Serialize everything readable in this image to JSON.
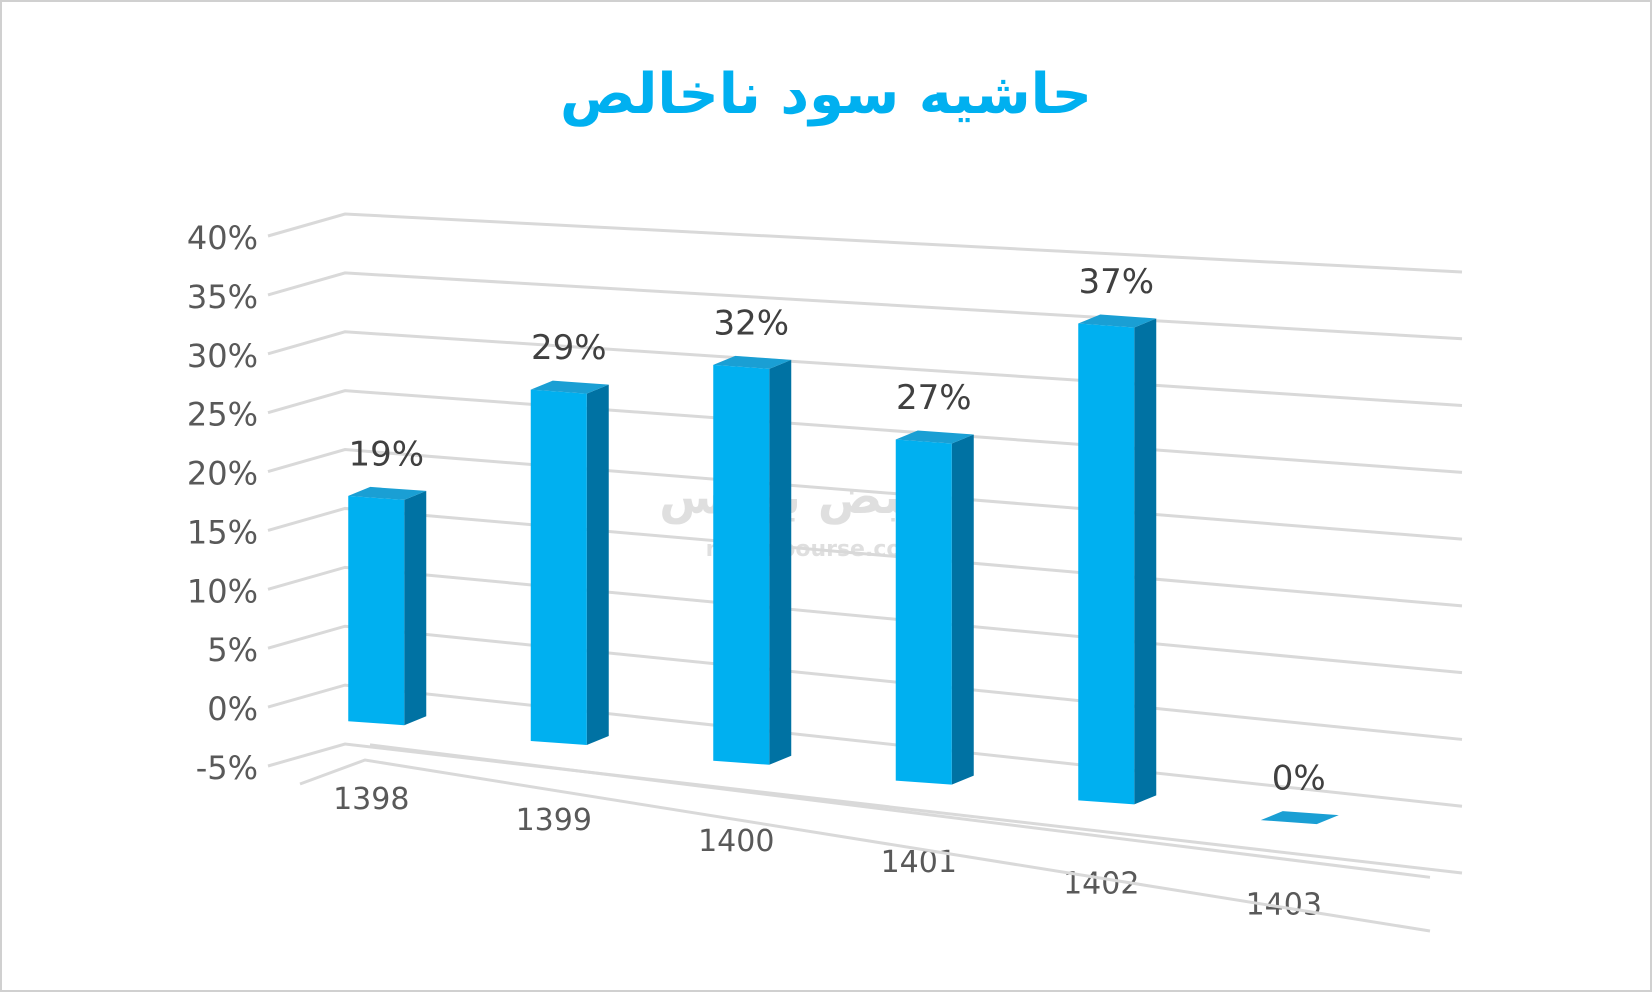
{
  "chart_data": {
    "type": "bar3d",
    "title": "حاشیه سود ناخالص",
    "categories": [
      "1398",
      "1399",
      "1400",
      "1401",
      "1402",
      "1403"
    ],
    "values": [
      19,
      29,
      32,
      27,
      37,
      0
    ],
    "value_labels": [
      "19%",
      "29%",
      "32%",
      "27%",
      "37%",
      "0%"
    ],
    "color": "#00b0f0",
    "ylim": [
      -5,
      40
    ],
    "yticks": [
      {
        "value": -5,
        "label": "-5%"
      },
      {
        "value": 0,
        "label": "0%"
      },
      {
        "value": 5,
        "label": "5%"
      },
      {
        "value": 10,
        "label": "10%"
      },
      {
        "value": 15,
        "label": "15%"
      },
      {
        "value": 20,
        "label": "20%"
      },
      {
        "value": 25,
        "label": "25%"
      },
      {
        "value": 30,
        "label": "30%"
      },
      {
        "value": 35,
        "label": "35%"
      },
      {
        "value": 40,
        "label": "40%"
      }
    ],
    "grid": true,
    "watermark": {
      "logo": "نبض بورس",
      "site": "nabzebourse.com"
    }
  }
}
